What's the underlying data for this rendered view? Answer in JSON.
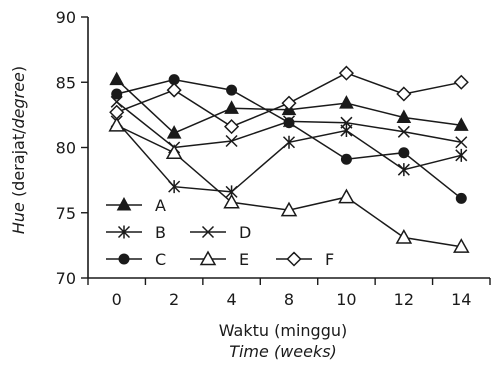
{
  "chart_data": {
    "type": "line",
    "x": [
      "0",
      "2",
      "4",
      "8",
      "10",
      "12",
      "14"
    ],
    "xlabel": "Waktu (minggu)",
    "xlabel_en": "Time (weeks)",
    "ylabel_parts": {
      "main_italic": "Hue",
      "paren_open": " (derajat/",
      "en_italic": "degree",
      "paren_close": ")"
    },
    "ylim": [
      70,
      90
    ],
    "yticks": [
      70,
      75,
      80,
      85,
      90
    ],
    "grid": false,
    "legend_position": "bottom-left",
    "series": [
      {
        "name": "A",
        "marker": "filled-triangle",
        "values": [
          85.2,
          81.1,
          83.0,
          82.9,
          83.4,
          82.3,
          81.7
        ]
      },
      {
        "name": "B",
        "marker": "asterisk",
        "values": [
          82.0,
          77.0,
          76.6,
          80.4,
          81.3,
          78.3,
          79.4
        ]
      },
      {
        "name": "C",
        "marker": "filled-circle",
        "values": [
          84.1,
          85.2,
          84.4,
          81.9,
          79.1,
          79.6,
          76.1
        ]
      },
      {
        "name": "D",
        "marker": "x",
        "values": [
          83.5,
          80.0,
          80.5,
          82.0,
          81.9,
          81.2,
          80.4
        ]
      },
      {
        "name": "E",
        "marker": "open-triangle",
        "values": [
          81.7,
          79.6,
          75.8,
          75.2,
          76.2,
          73.1,
          72.4
        ]
      },
      {
        "name": "F",
        "marker": "open-diamond",
        "values": [
          82.7,
          84.4,
          81.6,
          83.4,
          85.7,
          84.1,
          85.0
        ]
      }
    ]
  }
}
